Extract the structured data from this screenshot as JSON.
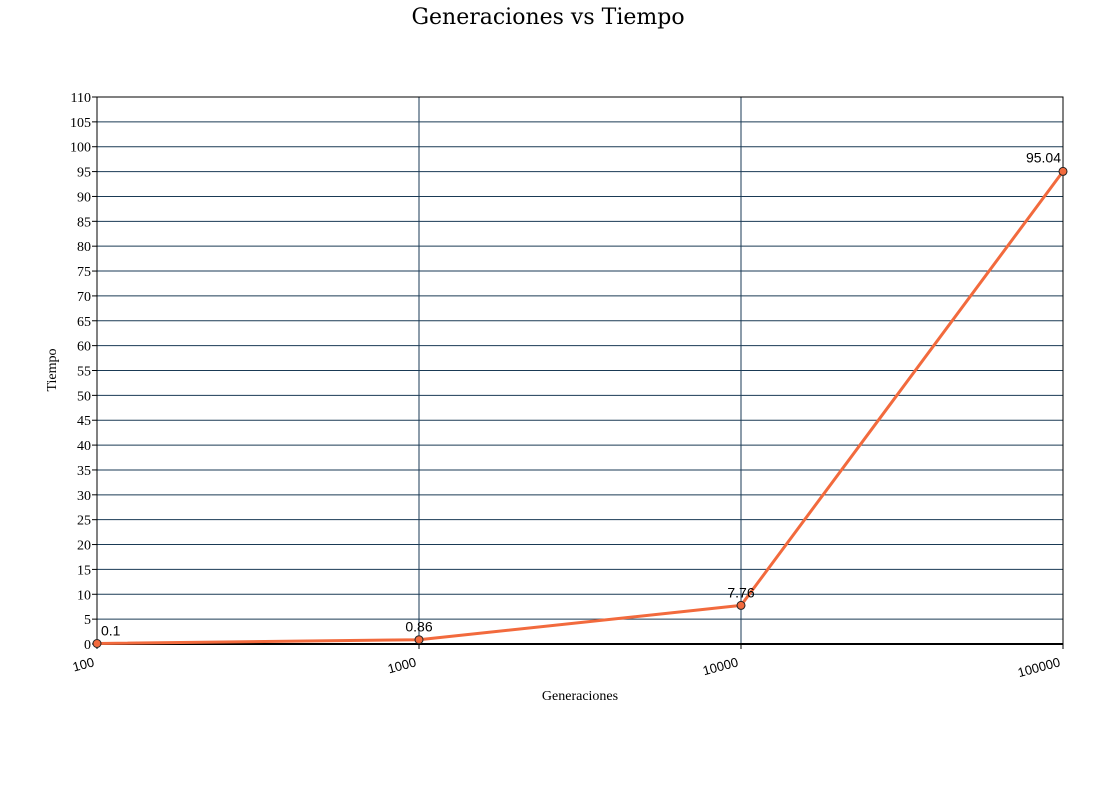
{
  "chart_data": {
    "type": "line",
    "title": "Generaciones vs Tiempo",
    "xlabel": "Generaciones",
    "ylabel": "Tiempo",
    "x_scale": "log",
    "x": [
      100,
      1000,
      10000,
      100000
    ],
    "x_tick_labels": [
      "100",
      "1000",
      "10000",
      "100000"
    ],
    "ylim": [
      0,
      110
    ],
    "y_ticks": [
      0,
      5,
      10,
      15,
      20,
      25,
      30,
      35,
      40,
      45,
      50,
      55,
      60,
      65,
      70,
      75,
      80,
      85,
      90,
      95,
      100,
      105,
      110
    ],
    "series": [
      {
        "values": [
          0.1,
          0.86,
          7.76,
          95.04
        ],
        "data_labels": [
          "0.1",
          "0.86",
          "7.76",
          "95.04"
        ],
        "color": "#f26a3d",
        "marker_color": "#f26a3d"
      }
    ],
    "grid": true,
    "grid_color": "#1a3a55",
    "legend": "none"
  }
}
